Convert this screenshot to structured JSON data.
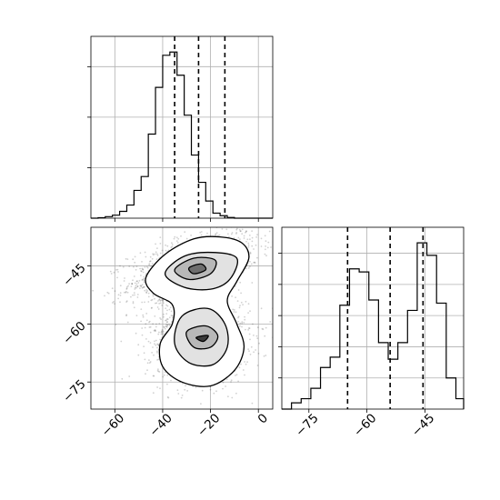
{
  "chart_data": {
    "type": "corner",
    "grid": true,
    "parameters": [
      {
        "name": "",
        "range": [
          -70,
          6
        ],
        "ticks": [
          -60,
          -40,
          -20,
          0
        ],
        "tick_labels": [
          "−60",
          "−40",
          "−20",
          "0"
        ],
        "histogram": {
          "edges": [
            -70,
            -67,
            -64,
            -61,
            -58,
            -55,
            -52,
            -49,
            -46,
            -43,
            -40,
            -37,
            -34,
            -31,
            -28,
            -25,
            -22,
            -19,
            -16,
            -13,
            -10,
            -7,
            -4,
            -1,
            2,
            6
          ],
          "counts": [
            0,
            2,
            6,
            12,
            27,
            52,
            110,
            165,
            333,
            518,
            645,
            658,
            566,
            408,
            250,
            142,
            68,
            20,
            10,
            3,
            0,
            0,
            0,
            0,
            0
          ]
        },
        "quantiles": [
          -35,
          -25,
          -14
        ]
      },
      {
        "name": "",
        "range": [
          -82,
          -35
        ],
        "ticks": [
          -75,
          -60,
          -45
        ],
        "tick_labels": [
          "−75",
          "−60",
          "−45"
        ],
        "histogram": {
          "edges": [
            -82,
            -79.5,
            -77,
            -74.5,
            -72,
            -69.5,
            -67,
            -64.5,
            -62,
            -59.5,
            -57,
            -54.5,
            -52,
            -49.5,
            -47,
            -44.5,
            -42,
            -39.5,
            -37,
            -35
          ],
          "counts": [
            0,
            6,
            10,
            20,
            40,
            50,
            100,
            135,
            132,
            105,
            64,
            48,
            64,
            95,
            160,
            148,
            102,
            30,
            10,
            0
          ]
        },
        "quantiles": [
          -65,
          -54,
          -45.5
        ]
      }
    ],
    "joint": {
      "modes": [
        {
          "x": -27,
          "y": -45,
          "sx": 10,
          "sy": 3.5,
          "rho": 0.5
        },
        {
          "x": -25,
          "y": -63,
          "sx": 8,
          "sy": 4.5,
          "rho": 0
        }
      ],
      "density_contours": [
        [
          [
            -47,
            -48
          ],
          [
            -39,
            -42
          ],
          [
            -27,
            -38
          ],
          [
            -16,
            -37.5
          ],
          [
            -7,
            -39
          ],
          [
            -4,
            -43
          ],
          [
            -9,
            -49
          ],
          [
            -13,
            -54
          ],
          [
            -9,
            -60
          ],
          [
            -6,
            -66
          ],
          [
            -10,
            -72
          ],
          [
            -20,
            -76
          ],
          [
            -32,
            -75
          ],
          [
            -40,
            -71
          ],
          [
            -41,
            -65
          ],
          [
            -36,
            -60
          ],
          [
            -36,
            -55
          ],
          [
            -44,
            -52
          ]
        ],
        [
          [
            -39,
            -47
          ],
          [
            -31,
            -42.5
          ],
          [
            -19,
            -41.5
          ],
          [
            -9,
            -43
          ],
          [
            -12,
            -48.5
          ],
          [
            -20,
            -51
          ],
          [
            -31,
            -50.5
          ]
        ],
        [
          [
            -32,
            -58
          ],
          [
            -21,
            -56
          ],
          [
            -14,
            -60
          ],
          [
            -13,
            -66
          ],
          [
            -19,
            -70.5
          ],
          [
            -29,
            -70
          ],
          [
            -35,
            -65
          ]
        ],
        [
          [
            -35,
            -46
          ],
          [
            -27,
            -43
          ],
          [
            -18,
            -43.5
          ],
          [
            -20,
            -47
          ],
          [
            -29,
            -48.5
          ]
        ],
        [
          [
            -30,
            -62
          ],
          [
            -22,
            -60.5
          ],
          [
            -17,
            -63
          ],
          [
            -20,
            -66
          ],
          [
            -27,
            -66
          ]
        ],
        [
          [
            -29,
            -45.5
          ],
          [
            -24,
            -44.5
          ],
          [
            -22,
            -46
          ],
          [
            -27,
            -47
          ]
        ],
        [
          [
            -26,
            -63.5
          ],
          [
            -21,
            -63
          ],
          [
            -23,
            -64.5
          ]
        ]
      ]
    }
  }
}
